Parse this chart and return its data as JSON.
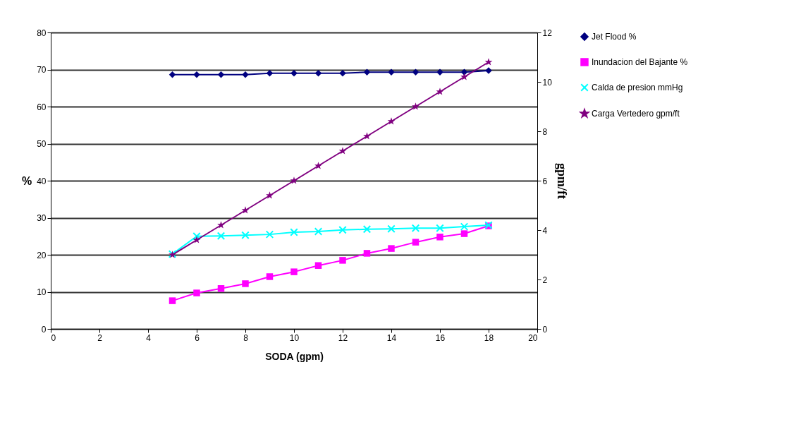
{
  "chart_data": {
    "type": "line",
    "xlabel": "SODA (gpm)",
    "ylabel": "%",
    "y2label": "gpm/ft",
    "x": [
      5,
      6,
      7,
      8,
      9,
      10,
      11,
      12,
      13,
      14,
      15,
      16,
      17,
      18
    ],
    "series": [
      {
        "name": "Jet Flood %",
        "color": "#000080",
        "marker": "diamond",
        "values": [
          68.6,
          68.6,
          68.6,
          68.6,
          69.0,
          69.0,
          69.0,
          69.0,
          69.3,
          69.3,
          69.3,
          69.3,
          69.3,
          69.7
        ]
      },
      {
        "name": "Inundacion del Bajante %",
        "color": "#ff00ff",
        "marker": "square",
        "values": [
          7.6,
          9.7,
          10.9,
          12.2,
          14.1,
          15.4,
          17.1,
          18.5,
          20.4,
          21.7,
          23.4,
          24.8,
          25.7,
          27.8
        ]
      },
      {
        "name": "Calda de presion mmHg",
        "color": "#00ffff",
        "marker": "cross",
        "values": [
          20.2,
          25.0,
          25.1,
          25.3,
          25.5,
          26.1,
          26.3,
          26.7,
          26.9,
          27.0,
          27.2,
          27.2,
          27.6,
          28.0
        ]
      },
      {
        "name": "Carga Vertedero gpm/ft",
        "color": "#800080",
        "marker": "star",
        "axis": "y2",
        "values": [
          3.0,
          3.6,
          4.2,
          4.8,
          5.4,
          6.0,
          6.6,
          7.2,
          7.8,
          8.4,
          9.0,
          9.6,
          10.2,
          10.8
        ]
      }
    ],
    "xlim": [
      0,
      20
    ],
    "xticks": [
      0,
      2,
      4,
      6,
      8,
      10,
      12,
      14,
      16,
      18,
      20
    ],
    "ylim": [
      0,
      80
    ],
    "yticks": [
      0,
      10,
      20,
      30,
      40,
      50,
      60,
      70,
      80
    ],
    "y2lim": [
      0,
      12
    ],
    "y2ticks": [
      0,
      2,
      4,
      6,
      8,
      10,
      12
    ],
    "grid": "y",
    "legend": "right"
  }
}
